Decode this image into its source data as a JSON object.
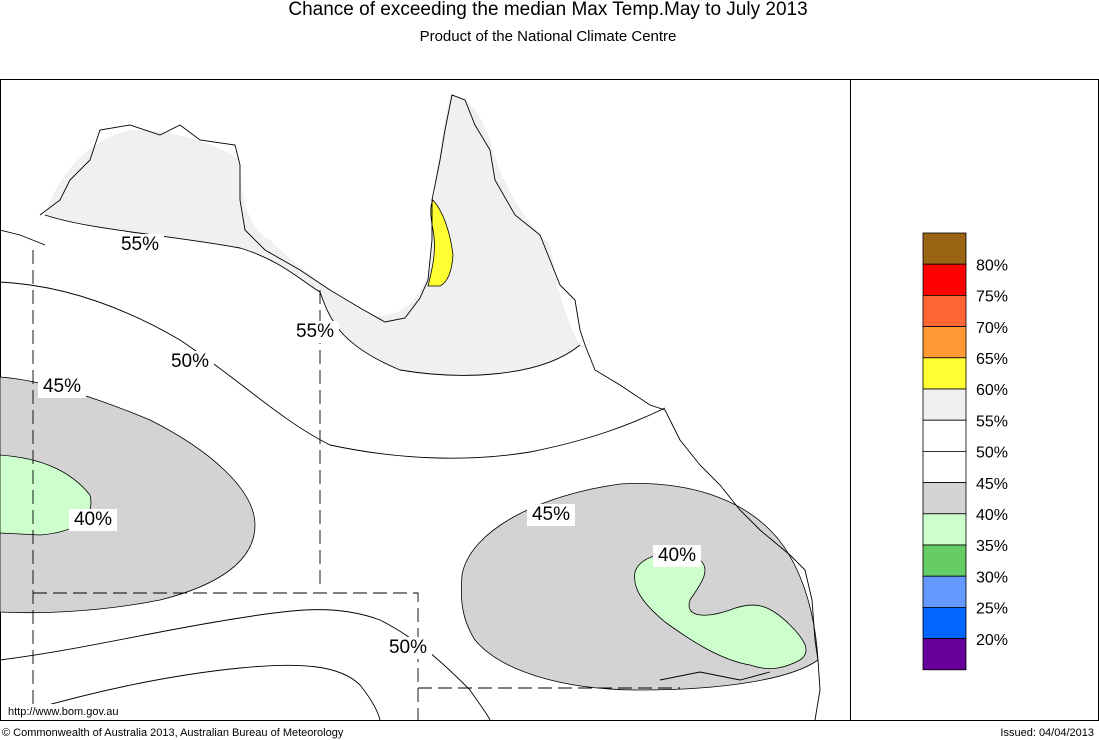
{
  "header": {
    "title": "Chance of exceeding the median Max Temp.May to July 2013",
    "subtitle": "Product of the National Climate Centre"
  },
  "map": {
    "contour_labels": [
      "55%",
      "55%",
      "50%",
      "45%",
      "40%",
      "45%",
      "40%",
      "50%"
    ],
    "url": "http://www.bom.gov.au"
  },
  "legend": {
    "colors": [
      "#996515",
      "#ff0000",
      "#ff6633",
      "#ff9933",
      "#ffff33",
      "#f0f0f0",
      "#ffffff",
      "#ffffff",
      "#d3d3d3",
      "#ccffcc",
      "#66cc66",
      "#6699ff",
      "#0066ff",
      "#660099"
    ],
    "labels": [
      "80%",
      "75%",
      "70%",
      "65%",
      "60%",
      "55%",
      "50%",
      "45%",
      "40%",
      "35%",
      "30%",
      "25%",
      "20%"
    ]
  },
  "footer": {
    "copyright": "© Commonwealth of Australia 2013, Australian Bureau of Meteorology",
    "issued": "Issued: 04/04/2013"
  }
}
